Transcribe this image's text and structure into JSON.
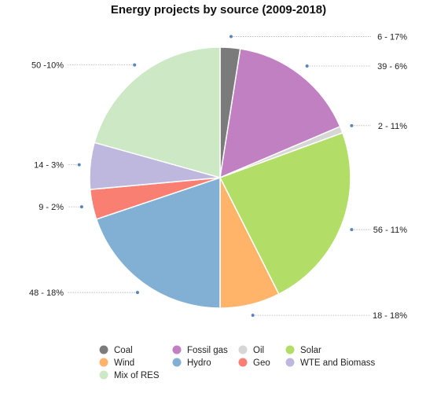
{
  "chart_data": {
    "type": "pie",
    "title": "Energy projects by source (2009-2018)",
    "slices": [
      {
        "name": "Coal",
        "value": 6,
        "share": 17,
        "label": "6 - 17%",
        "color": "#7b7b7b"
      },
      {
        "name": "Fossil gas",
        "value": 39,
        "share": 6,
        "label": "39 - 6%",
        "color": "#c080c2"
      },
      {
        "name": "Oil",
        "value": 2,
        "share": 11,
        "label": "2 - 11%",
        "color": "#d6d6d6"
      },
      {
        "name": "Solar",
        "value": 56,
        "share": 11,
        "label": "56 - 11%",
        "color": "#b2de68"
      },
      {
        "name": "Wind",
        "value": 18,
        "share": 18,
        "label": "18 - 18%",
        "color": "#ffb46a"
      },
      {
        "name": "Hydro",
        "value": 48,
        "share": 18,
        "label": "48 - 18%",
        "color": "#82b0d4"
      },
      {
        "name": "Geo",
        "value": 9,
        "share": 2,
        "label": "9 - 2%",
        "color": "#f97f72"
      },
      {
        "name": "WTE and Biomass",
        "value": 14,
        "share": 3,
        "label": "14 - 3%",
        "color": "#beb8de"
      },
      {
        "name": "Mix of RES",
        "value": 50,
        "share": 10,
        "label": "50 -10%",
        "color": "#cce8c5"
      }
    ],
    "legend": {
      "position": "bottom",
      "items": [
        "Coal",
        "Fossil gas",
        "Oil",
        "Solar",
        "Wind",
        "Hydro",
        "Geo",
        "WTE and Biomass",
        "Mix of RES"
      ]
    }
  }
}
